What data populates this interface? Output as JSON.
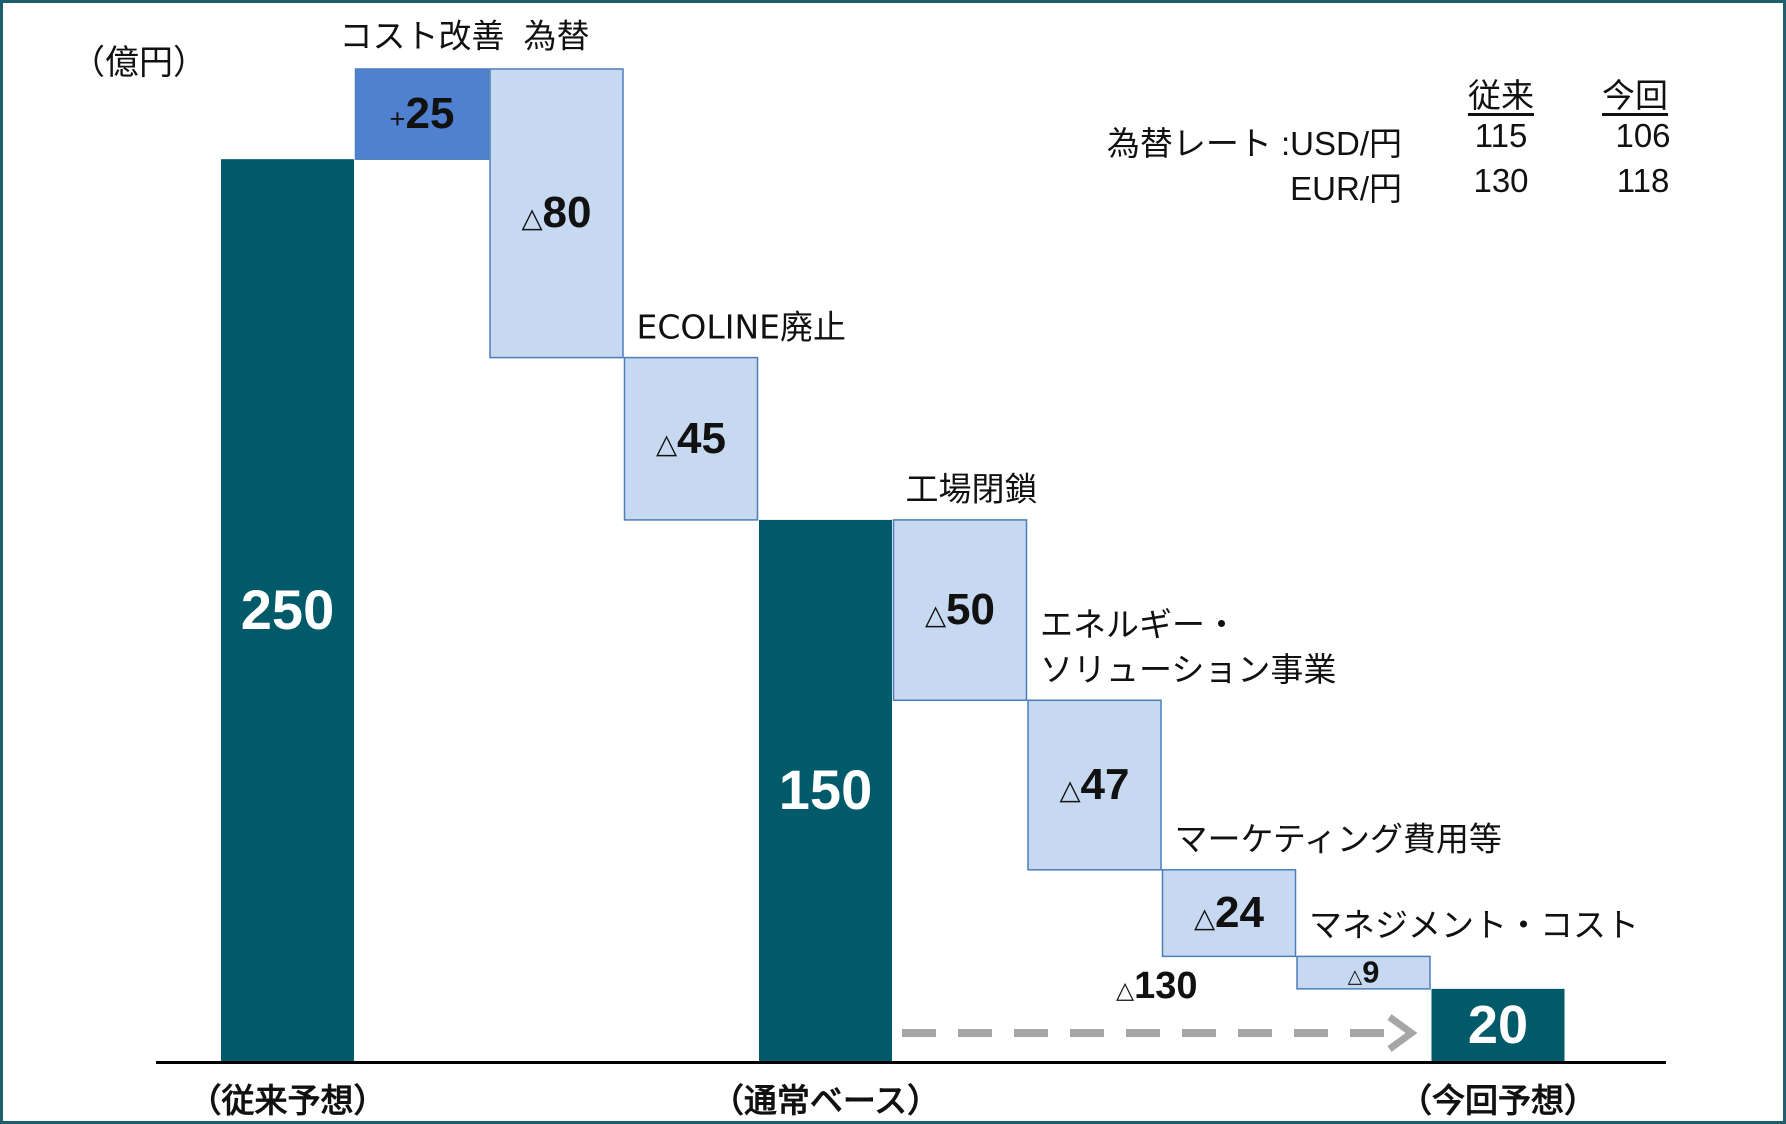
{
  "chart_data": {
    "type": "waterfall",
    "unit_label": "（億円）",
    "categories": [
      "（従来予想）",
      "コスト改善",
      "為替",
      "ECOLINE廃止",
      "（通常ベース）",
      "工場閉鎖",
      "エネルギー・\nソリューション事業",
      "マーケティング費用等",
      "マネジメント・コスト",
      "（今回予想）"
    ],
    "measures": [
      "total",
      "relative",
      "relative",
      "relative",
      "total",
      "relative",
      "relative",
      "relative",
      "relative",
      "total"
    ],
    "values": [
      250,
      25,
      -80,
      -45,
      150,
      -50,
      -47,
      -24,
      -9,
      20
    ],
    "value_labels": [
      "250",
      "+25",
      "△80",
      "△45",
      "150",
      "△50",
      "△47",
      "△24",
      "△9",
      "20"
    ],
    "colors": {
      "total": "#005a69",
      "increase": "#4f81d0",
      "decrease": "#c6d9f1"
    },
    "annotation": {
      "text": "△130",
      "from": 4,
      "to": 9
    },
    "fx_table": {
      "headers": [
        "従来",
        "今回"
      ],
      "rows": [
        [
          "為替レート :USD/円",
          "115",
          "106"
        ],
        [
          "EUR/円",
          "130",
          "118"
        ]
      ]
    }
  }
}
